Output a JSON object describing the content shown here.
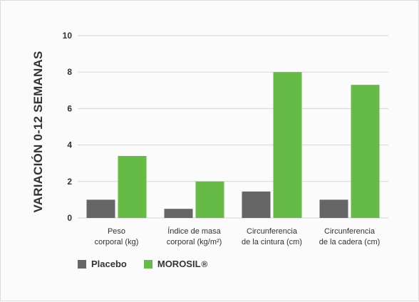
{
  "chart_data": {
    "type": "bar",
    "ylabel": "VARIACIÓN 0-12 SEMANAS",
    "xlabel": "",
    "ylim": [
      0,
      10
    ],
    "yticks": [
      0,
      2,
      4,
      6,
      8,
      10
    ],
    "grid": true,
    "legend_position": "bottom-left",
    "categories": [
      [
        "Peso",
        "corporal (kg)"
      ],
      [
        "Índice de masa",
        "corporal (kg/m²)"
      ],
      [
        "Circunferencia",
        "de la cintura (cm)"
      ],
      [
        "Circunferencia",
        "de la cadera (cm)"
      ]
    ],
    "series": [
      {
        "name": "Placebo",
        "color": "#666666",
        "values": [
          1.0,
          0.5,
          1.45,
          1.0
        ]
      },
      {
        "name": "MOROSIL",
        "name_sup": "®",
        "color": "#66bb46",
        "values": [
          3.4,
          2.0,
          8.0,
          7.3
        ]
      }
    ]
  }
}
